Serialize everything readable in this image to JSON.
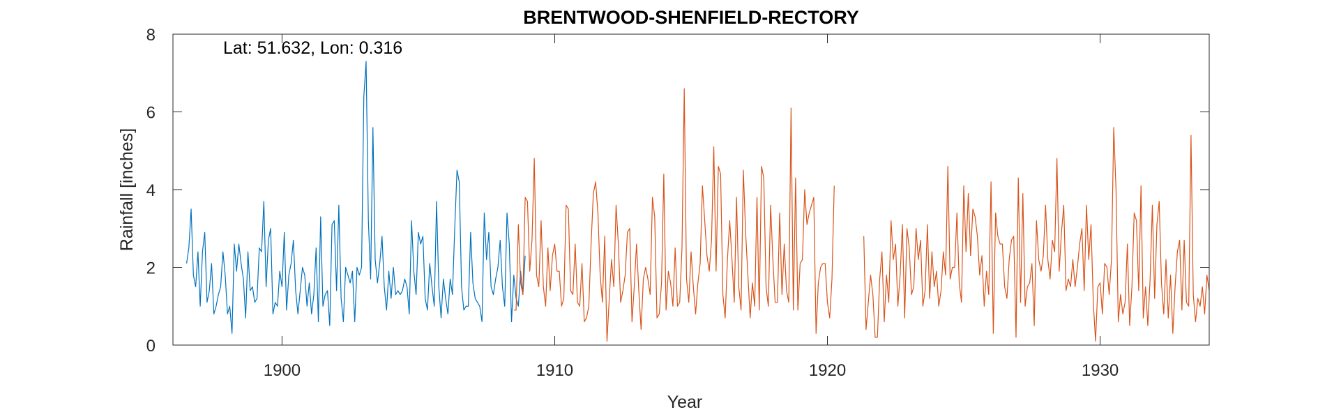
{
  "chart_data": {
    "type": "line",
    "title": "BRENTWOOD-SHENFIELD-RECTORY",
    "annotation": "Lat: 51.632, Lon: 0.316",
    "xlabel": "Year",
    "ylabel": "Rainfall [inches]",
    "xlim": [
      1896.0,
      1934.0
    ],
    "ylim": [
      0,
      8
    ],
    "xticks": [
      1900,
      1910,
      1920,
      1930
    ],
    "yticks": [
      0,
      2,
      4,
      6,
      8
    ],
    "grid": false,
    "series": [
      {
        "color": "#0072BD",
        "x_start": 1896.5,
        "x_step": 0.08333,
        "values": [
          2.1,
          2.5,
          3.5,
          1.8,
          1.5,
          2.4,
          1.0,
          2.4,
          2.9,
          1.1,
          1.4,
          2.1,
          0.8,
          1.0,
          1.3,
          1.5,
          2.4,
          1.8,
          0.8,
          1.0,
          0.3,
          2.6,
          1.9,
          2.6,
          2.1,
          1.7,
          0.7,
          2.4,
          1.4,
          1.5,
          1.1,
          1.2,
          2.5,
          2.4,
          3.7,
          1.5,
          2.7,
          3.0,
          0.8,
          1.1,
          1.0,
          1.9,
          1.5,
          2.9,
          0.9,
          1.8,
          2.1,
          2.7,
          1.4,
          0.8,
          1.4,
          2.0,
          1.8,
          1.0,
          1.6,
          0.8,
          1.3,
          2.5,
          0.6,
          3.3,
          1.0,
          1.3,
          1.4,
          0.5,
          3.1,
          3.2,
          1.4,
          3.6,
          1.2,
          0.6,
          2.0,
          1.8,
          1.6,
          1.9,
          0.6,
          2.0,
          1.8,
          2.0,
          6.4,
          7.3,
          3.2,
          1.7,
          5.6,
          2.2,
          1.6,
          2.1,
          2.8,
          1.5,
          0.9,
          1.9,
          1.2,
          2.0,
          1.3,
          1.4,
          1.3,
          1.4,
          1.7,
          1.5,
          0.8,
          3.2,
          1.9,
          1.3,
          2.9,
          2.6,
          2.8,
          1.2,
          0.9,
          2.1,
          1.5,
          1.0,
          3.7,
          1.5,
          0.7,
          1.7,
          1.2,
          0.8,
          1.7,
          1.3,
          3.0,
          4.5,
          4.2,
          1.5,
          0.9,
          1.0,
          1.0,
          2.9,
          1.6,
          1.2,
          1.1,
          1.0,
          0.6,
          3.4,
          2.2,
          2.9,
          1.5,
          1.3,
          1.7,
          2.0,
          2.7,
          1.5,
          1.0,
          3.4,
          2.6,
          0.6,
          1.8,
          1.2,
          1.0,
          1.9,
          1.3,
          2.3
        ]
      },
      {
        "color": "#D95319",
        "x_start": 1908.5,
        "x_step": 0.08333,
        "values": [
          0.9,
          0.9,
          3.1,
          1.6,
          1.3,
          3.8,
          3.7,
          1.9,
          2.7,
          4.8,
          1.8,
          1.5,
          3.2,
          1.5,
          1.0,
          2.5,
          1.4,
          2.3,
          2.6,
          1.9,
          1.9,
          1.0,
          1.2,
          3.6,
          3.5,
          1.4,
          1.3,
          2.6,
          1.1,
          1.0,
          2.1,
          0.6,
          0.7,
          1.0,
          2.6,
          3.9,
          4.2,
          3.4,
          1.8,
          1.1,
          2.8,
          0.1,
          1.2,
          2.2,
          1.5,
          3.6,
          2.6,
          1.1,
          1.4,
          1.8,
          2.9,
          3.0,
          0.6,
          1.5,
          2.6,
          1.4,
          0.4,
          1.7,
          2.0,
          1.7,
          1.3,
          3.8,
          3.3,
          0.7,
          0.8,
          1.6,
          4.4,
          0.9,
          1.9,
          1.6,
          1.0,
          2.5,
          1.0,
          1.1,
          2.5,
          6.6,
          1.7,
          1.1,
          2.4,
          1.5,
          0.8,
          1.6,
          2.1,
          4.1,
          3.2,
          2.3,
          1.9,
          2.7,
          5.1,
          1.9,
          4.6,
          4.4,
          1.3,
          0.7,
          2.2,
          3.2,
          2.2,
          1.1,
          3.8,
          1.5,
          0.9,
          4.5,
          2.9,
          1.8,
          0.7,
          1.6,
          1.0,
          3.8,
          0.9,
          4.6,
          4.3,
          1.5,
          1.0,
          3.6,
          2.2,
          1.1,
          1.1,
          3.4,
          1.3,
          2.6,
          1.4,
          1.1,
          6.1,
          0.9,
          4.3,
          0.9,
          2.1,
          2.2,
          4.0,
          3.1,
          3.4,
          3.6,
          3.8,
          0.3,
          1.6,
          2.0,
          2.1,
          2.1,
          1.1,
          0.7,
          1.7,
          4.1,
          null,
          null,
          null,
          null,
          null,
          null,
          null,
          null,
          null,
          null,
          null,
          null,
          2.8,
          0.4,
          1.1,
          1.8,
          1.3,
          0.2,
          0.2,
          1.7,
          2.4,
          0.6,
          1.8,
          1.1,
          3.2,
          2.2,
          2.6,
          1.0,
          1.8,
          3.1,
          0.7,
          3.0,
          2.5,
          1.3,
          1.5,
          3.0,
          2.2,
          2.7,
          1.0,
          1.4,
          3.1,
          1.2,
          2.4,
          1.5,
          1.9,
          1.0,
          1.4,
          2.4,
          1.8,
          4.6,
          1.7,
          2.0,
          2.0,
          3.4,
          1.6,
          1.1,
          4.1,
          2.4,
          3.9,
          2.3,
          3.5,
          3.3,
          2.8,
          1.8,
          2.3,
          1.0,
          1.9,
          1.3,
          4.2,
          0.3,
          3.4,
          2.8,
          2.6,
          2.6,
          1.5,
          1.2,
          2.2,
          2.7,
          2.8,
          0.2,
          4.3,
          1.1,
          3.9,
          1.0,
          1.5,
          1.6,
          2.1,
          0.5,
          3.2,
          2.2,
          1.9,
          2.3,
          3.6,
          2.2,
          1.7,
          2.7,
          2.4,
          4.8,
          1.9,
          2.9,
          3.6,
          1.4,
          1.7,
          1.5,
          2.2,
          1.5,
          2.0,
          2.6,
          3.0,
          1.4,
          3.6,
          2.2,
          3.1,
          1.1,
          0.1,
          1.5,
          1.6,
          0.8,
          2.1,
          2.0,
          1.3,
          2.2,
          5.6,
          4.0,
          0.6,
          1.3,
          0.8,
          1.1,
          2.6,
          0.5,
          1.5,
          3.4,
          3.2,
          1.4,
          4.1,
          0.7,
          1.5,
          0.5,
          1.7,
          3.6,
          1.2,
          3.1,
          3.7,
          1.6,
          0.8,
          2.2,
          0.7,
          1.8,
          0.3,
          1.5,
          2.4,
          2.7,
          0.9,
          2.7,
          1.1,
          1.0,
          5.4,
          1.3,
          0.6,
          1.2,
          1.0,
          1.5,
          0.8,
          1.8,
          1.4
        ]
      }
    ]
  }
}
